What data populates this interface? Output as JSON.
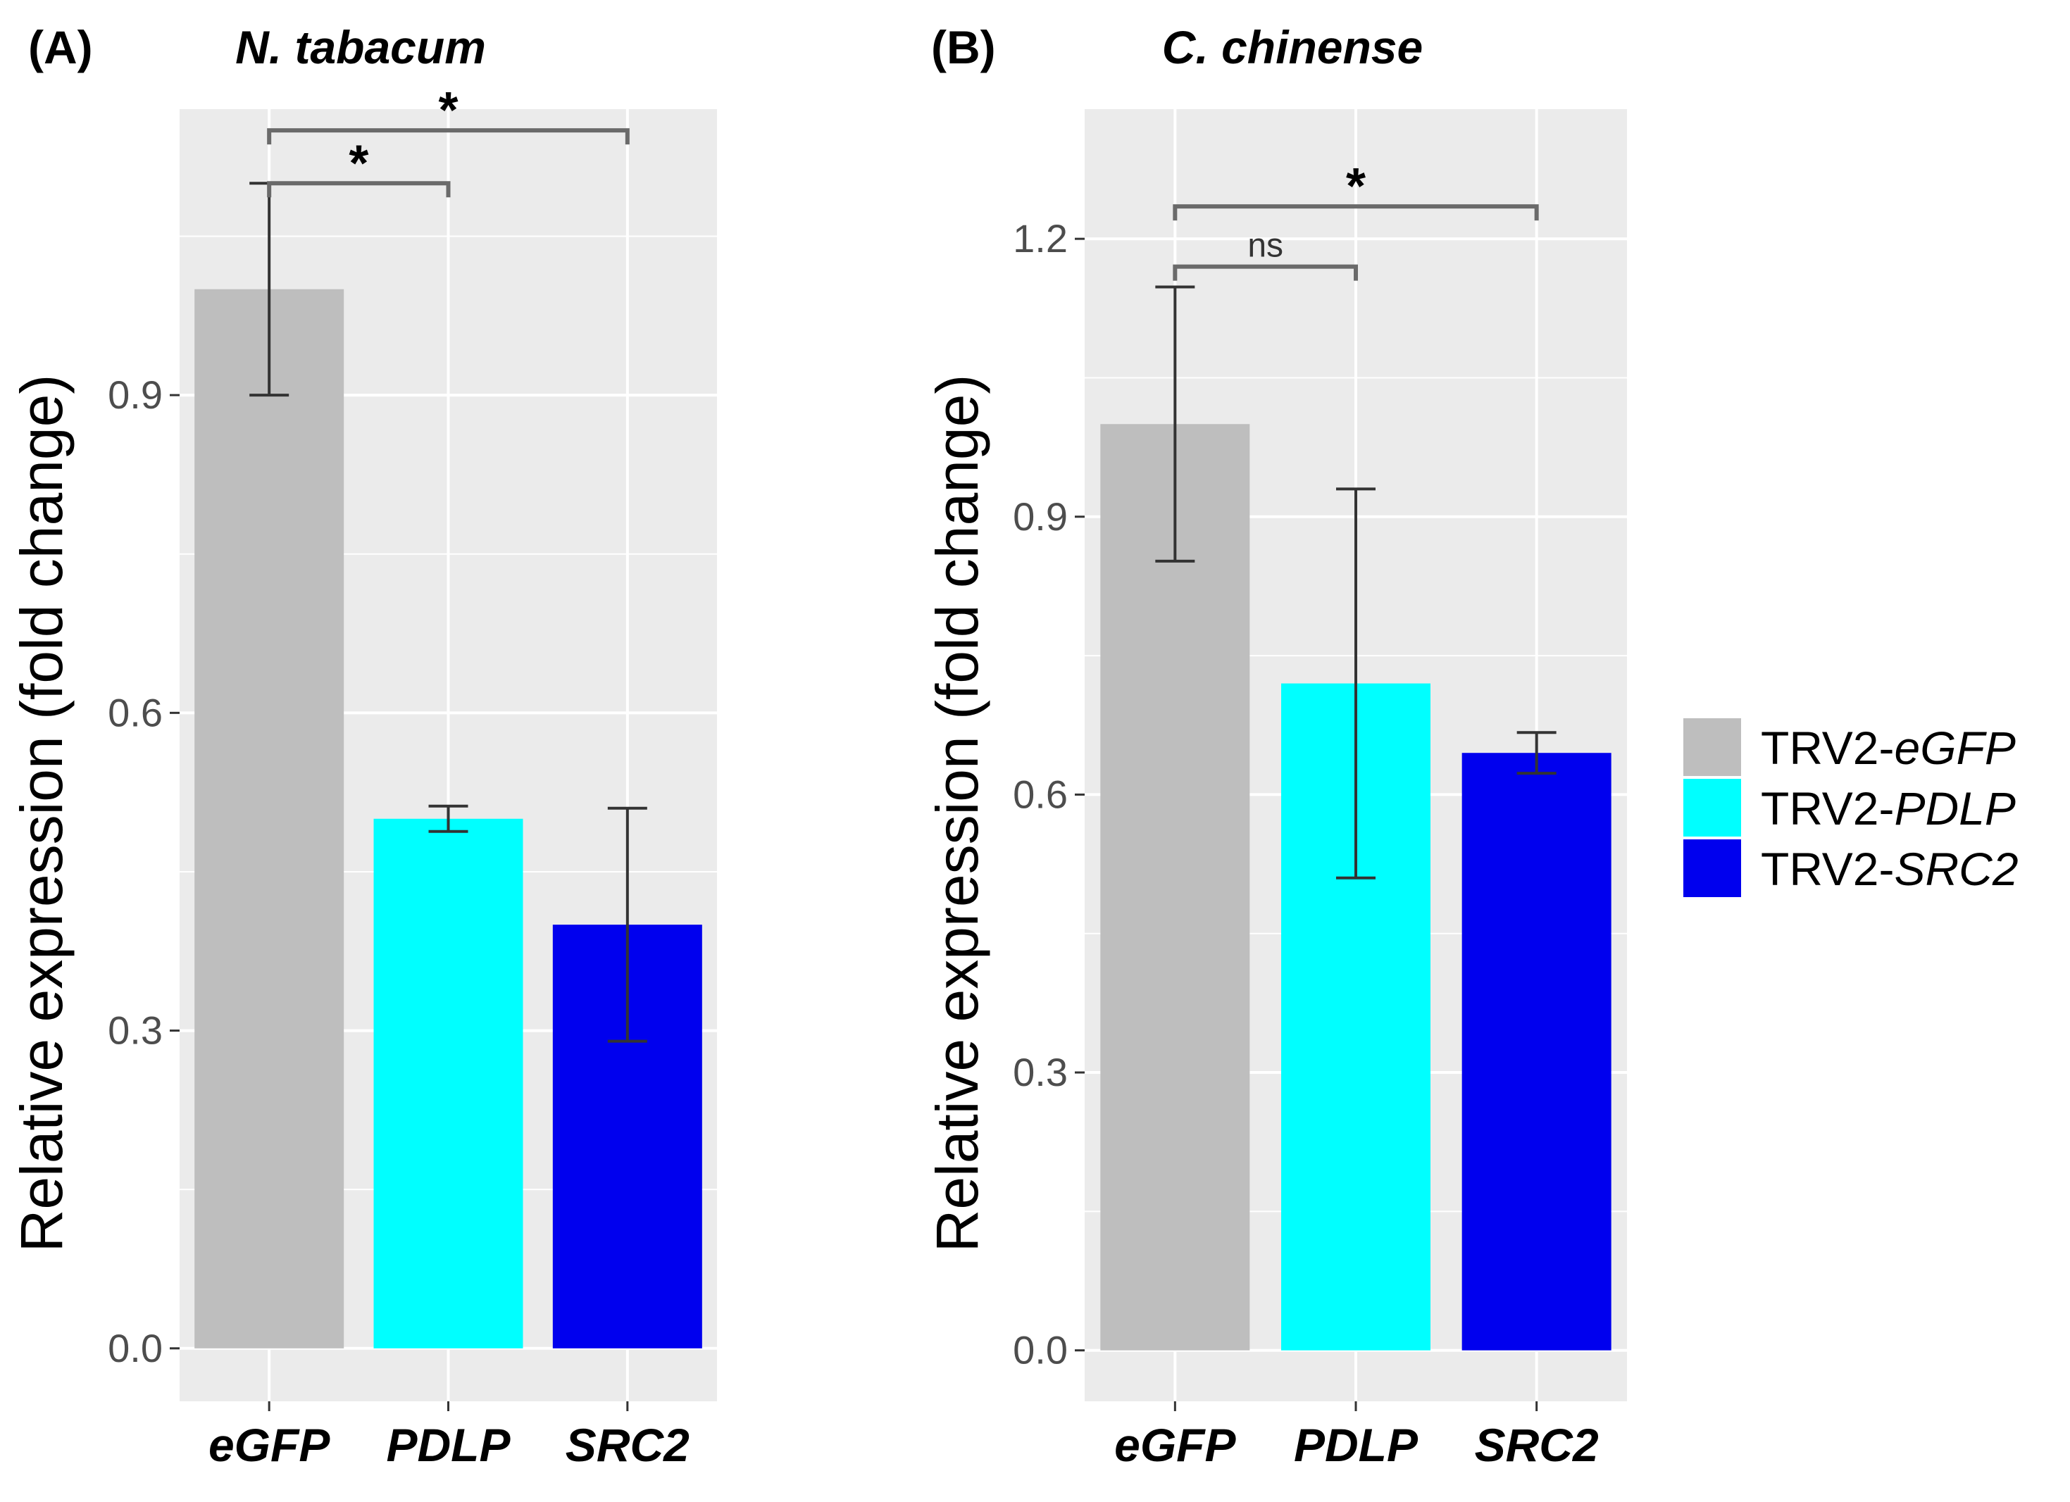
{
  "chart_data": [
    {
      "panel_label": "(A)",
      "title": "N. tabacum",
      "type": "bar",
      "ylabel": "Relative expression (fold change)",
      "ylim": [
        -0.05,
        1.17
      ],
      "yticks": [
        0.0,
        0.3,
        0.6,
        0.9
      ],
      "ytick_labels": [
        "0.0",
        "0.3",
        "0.6",
        "0.9"
      ],
      "categories": [
        "eGFP",
        "PDLP",
        "SRC2"
      ],
      "values": [
        1.0,
        0.5,
        0.4
      ],
      "errors": [
        0.1,
        0.012,
        0.11
      ],
      "significance": [
        {
          "from": 0,
          "to": 1,
          "label": "*",
          "level": 1.1
        },
        {
          "from": 0,
          "to": 2,
          "label": "*",
          "level": 1.15
        }
      ]
    },
    {
      "panel_label": "(B)",
      "title": "C. chinense",
      "type": "bar",
      "ylabel": "Relative expression (fold change)",
      "ylim": [
        -0.055,
        1.34
      ],
      "yticks": [
        0.0,
        0.3,
        0.6,
        0.9,
        1.2
      ],
      "ytick_labels": [
        "0.0",
        "0.3",
        "0.6",
        "0.9",
        "1.2"
      ],
      "categories": [
        "eGFP",
        "PDLP",
        "SRC2"
      ],
      "values": [
        1.0,
        0.72,
        0.645
      ],
      "errors": [
        0.148,
        0.21,
        0.022
      ],
      "significance": [
        {
          "from": 0,
          "to": 1,
          "label": "ns",
          "level": 1.17
        },
        {
          "from": 0,
          "to": 2,
          "label": "*",
          "level": 1.235
        }
      ]
    }
  ],
  "legend": {
    "entries": [
      {
        "prefix": "TRV2-",
        "gene": "eGFP",
        "color": "#bebebe"
      },
      {
        "prefix": "TRV2-",
        "gene": "PDLP",
        "color": "#00ffff"
      },
      {
        "prefix": "TRV2-",
        "gene": "SRC2",
        "color": "#0000ee"
      }
    ]
  },
  "colors": {
    "panel_background": "#ebebeb",
    "gridline": "#ffffff",
    "errorbar": "#333333",
    "bracket": "#6a6a6a"
  }
}
